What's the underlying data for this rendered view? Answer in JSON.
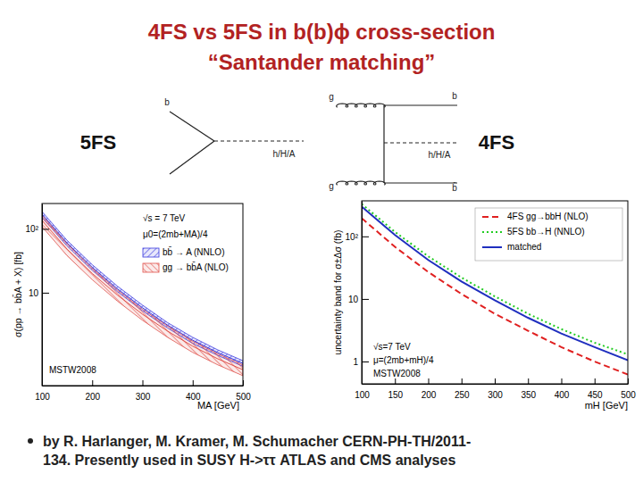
{
  "slide": {
    "title": [
      "4FS vs 5FS in b(b)ϕ cross-section",
      "“Santander matching”"
    ],
    "scheme_labels": [
      "5FS",
      "4FS"
    ],
    "diagrams": [
      {
        "labels": [
          "b",
          "h/H/A"
        ]
      },
      {
        "labels": [
          "g",
          "b",
          "h/H/A",
          "g",
          "b̄"
        ]
      }
    ],
    "bullet": [
      "by R. Harlanger, M. Kramer, M. Schumacher CERN-PH-TH/2011-",
      "134. Presently used in SUSY H->ττ ATLAS and CMS analyses"
    ]
  },
  "chart_data": [
    {
      "type": "line",
      "x_label": "MA [GeV]",
      "y_label": "σ(pp → bb̄A + X) [fb]",
      "x": [
        100,
        150,
        200,
        250,
        300,
        350,
        400,
        450,
        500
      ],
      "xlim": [
        100,
        500
      ],
      "xticks": [
        100,
        200,
        300,
        400,
        500
      ],
      "ylim": [
        0.35,
        250
      ],
      "yticks": [
        10,
        {
          "value": 100,
          "label": "10²"
        }
      ],
      "log": "y",
      "legend": "upper right",
      "annotations": [
        "√s = 7 TeV",
        "μ0=(2mb+MA)/4",
        "MSTW2008"
      ],
      "series": [
        {
          "name": "bb̄ → A (NNLO)",
          "type": "band",
          "color": "#3a3adf",
          "values": [
            170,
            60,
            25,
            11.5,
            5.8,
            3.1,
            1.8,
            1.15,
            0.78
          ],
          "lower": [
            153,
            54,
            22.5,
            10.4,
            5.2,
            2.8,
            1.6,
            1.04,
            0.7
          ],
          "upper": [
            187,
            66,
            27.5,
            12.7,
            6.4,
            3.4,
            2.0,
            1.27,
            0.86
          ]
        },
        {
          "name": "gg → bb̄A (NLO)",
          "type": "band",
          "color": "#e0504a",
          "values": [
            136,
            48,
            20,
            9.2,
            4.6,
            2.5,
            1.45,
            0.92,
            0.62
          ],
          "lower": [
            109,
            38,
            16,
            7.4,
            3.7,
            2.0,
            1.16,
            0.74,
            0.5
          ],
          "upper": [
            163,
            58,
            24,
            11,
            5.5,
            3.0,
            1.74,
            1.1,
            0.74
          ]
        }
      ]
    },
    {
      "type": "line",
      "x_label": "mH [GeV]",
      "y_label": "uncertainty band for σ±Δσ (fb)",
      "x": [
        100,
        150,
        200,
        250,
        300,
        350,
        400,
        450,
        500
      ],
      "xlim": [
        100,
        500
      ],
      "xticks": [
        100,
        150,
        200,
        250,
        300,
        350,
        400,
        450,
        500
      ],
      "ylim": [
        0.44,
        370
      ],
      "yticks": [
        1,
        10,
        {
          "value": 100,
          "label": "10²"
        }
      ],
      "log": "y",
      "legend": "upper right",
      "annotations": [
        "√s=7 TeV",
        "μ=(2mb+mH)/4",
        "MSTW2008"
      ],
      "series": [
        {
          "name": "4FS gg→bbH (NLO)",
          "type": "line",
          "color": "#e02020",
          "line_style": "dashed",
          "values": [
            195,
            68,
            27,
            12,
            5.8,
            3.1,
            1.7,
            1.0,
            0.62
          ]
        },
        {
          "name": "5FS bb→H (NNLO)",
          "type": "line",
          "color": "#22cc22",
          "line_style": "dotted",
          "values": [
            330,
            118,
            48,
            22,
            11,
            5.8,
            3.3,
            2.0,
            1.3
          ]
        },
        {
          "name": "matched",
          "type": "line",
          "color": "#1f2fbf",
          "line_style": "solid",
          "values": [
            300,
            105,
            42,
            19,
            9.5,
            5.0,
            2.8,
            1.7,
            1.05
          ]
        }
      ]
    }
  ]
}
